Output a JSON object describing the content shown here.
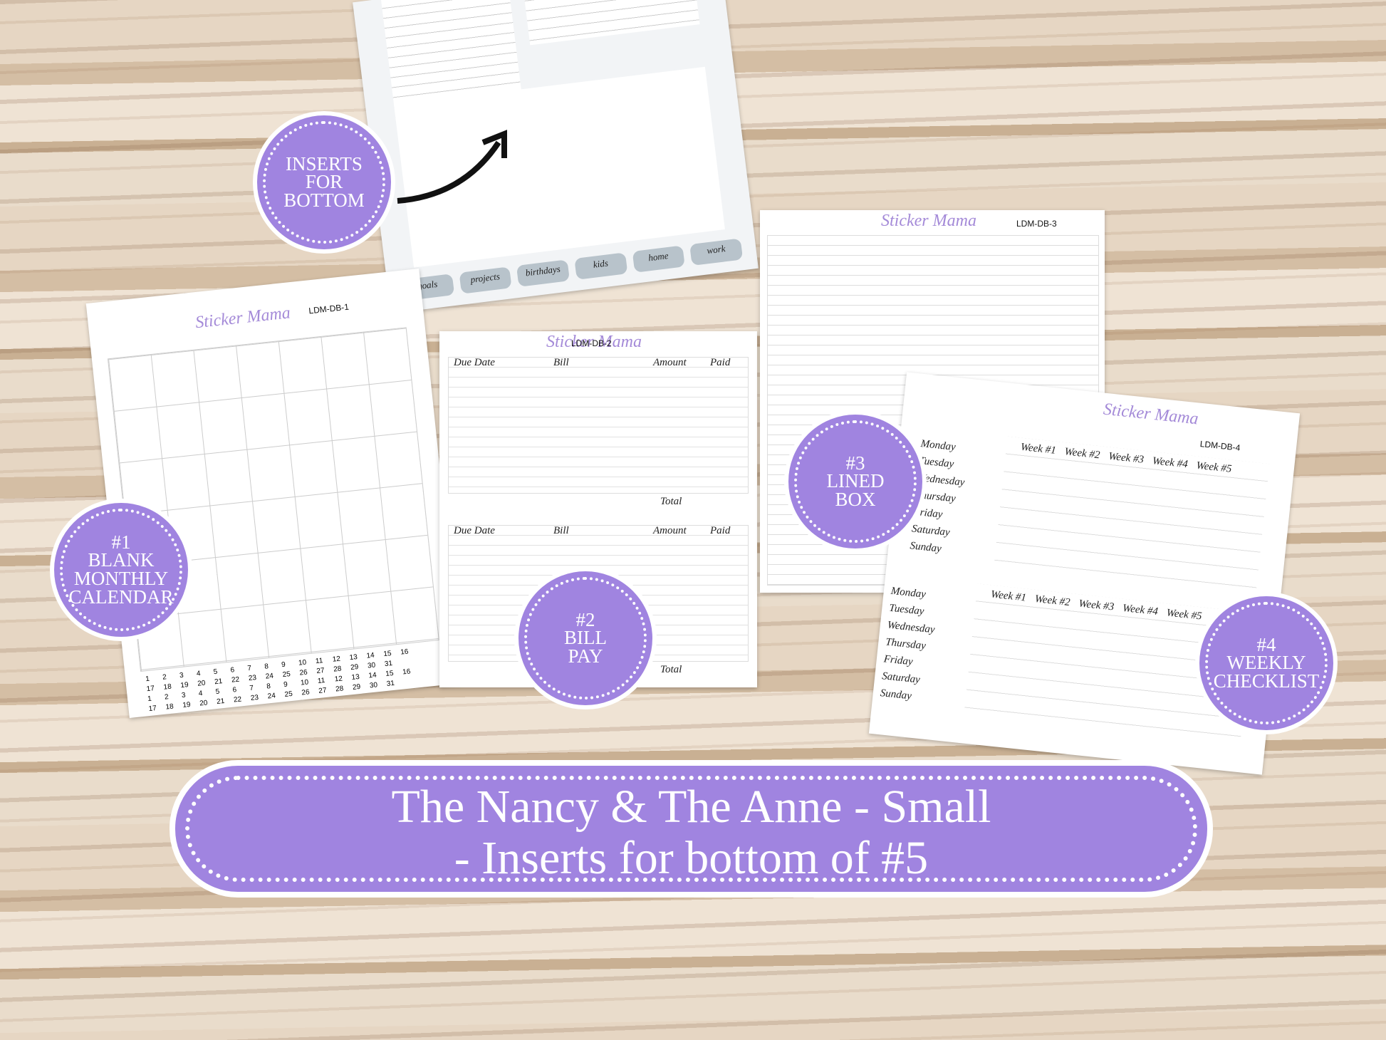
{
  "top_sheet": {
    "tabs": [
      "goals",
      "projects",
      "birthdays",
      "kids",
      "home",
      "work"
    ]
  },
  "badges": [
    {
      "lines": [
        "INSERTS",
        "FOR",
        "BOTTOM"
      ]
    },
    {
      "lines": [
        "#1",
        "BLANK",
        "MONTHLY",
        "CALENDAR"
      ]
    },
    {
      "lines": [
        "#2",
        "BILL",
        "PAY"
      ]
    },
    {
      "lines": [
        "#3",
        "LINED",
        "BOX"
      ]
    },
    {
      "lines": [
        "#4",
        "WEEKLY",
        "CHECKLIST"
      ]
    }
  ],
  "sheet1": {
    "brand": "Sticker Mama",
    "code": "LDM-DB-1",
    "stickers": [
      [
        "1",
        "2",
        "3",
        "4",
        "5",
        "6",
        "7",
        "8",
        "9",
        "10",
        "11",
        "12",
        "13",
        "14",
        "15",
        "16"
      ],
      [
        "17",
        "18",
        "19",
        "20",
        "21",
        "22",
        "23",
        "24",
        "25",
        "26",
        "27",
        "28",
        "29",
        "30",
        "31"
      ],
      [
        "1",
        "2",
        "3",
        "4",
        "5",
        "6",
        "7",
        "8",
        "9",
        "10",
        "11",
        "12",
        "13",
        "14",
        "15",
        "16"
      ],
      [
        "17",
        "18",
        "19",
        "20",
        "21",
        "22",
        "23",
        "24",
        "25",
        "26",
        "27",
        "28",
        "29",
        "30",
        "31"
      ]
    ]
  },
  "sheet2": {
    "brand": "Sticker Mama",
    "code": "LDM-DB-2",
    "columns": [
      "Due Date",
      "Bill",
      "Amount",
      "Paid"
    ],
    "total": "Total"
  },
  "sheet3": {
    "brand": "Sticker Mama",
    "code": "LDM-DB-3"
  },
  "sheet4": {
    "brand": "Sticker Mama",
    "code": "LDM-DB-4",
    "weeks": [
      "Week #1",
      "Week #2",
      "Week #3",
      "Week #4",
      "Week #5"
    ],
    "days": [
      "Monday",
      "Tuesday",
      "Wednesday",
      "Thursday",
      "Friday",
      "Saturday",
      "Sunday"
    ]
  },
  "banner": {
    "lines": [
      "The Nancy & The Anne - Small",
      "-  Inserts for bottom of #5"
    ]
  }
}
